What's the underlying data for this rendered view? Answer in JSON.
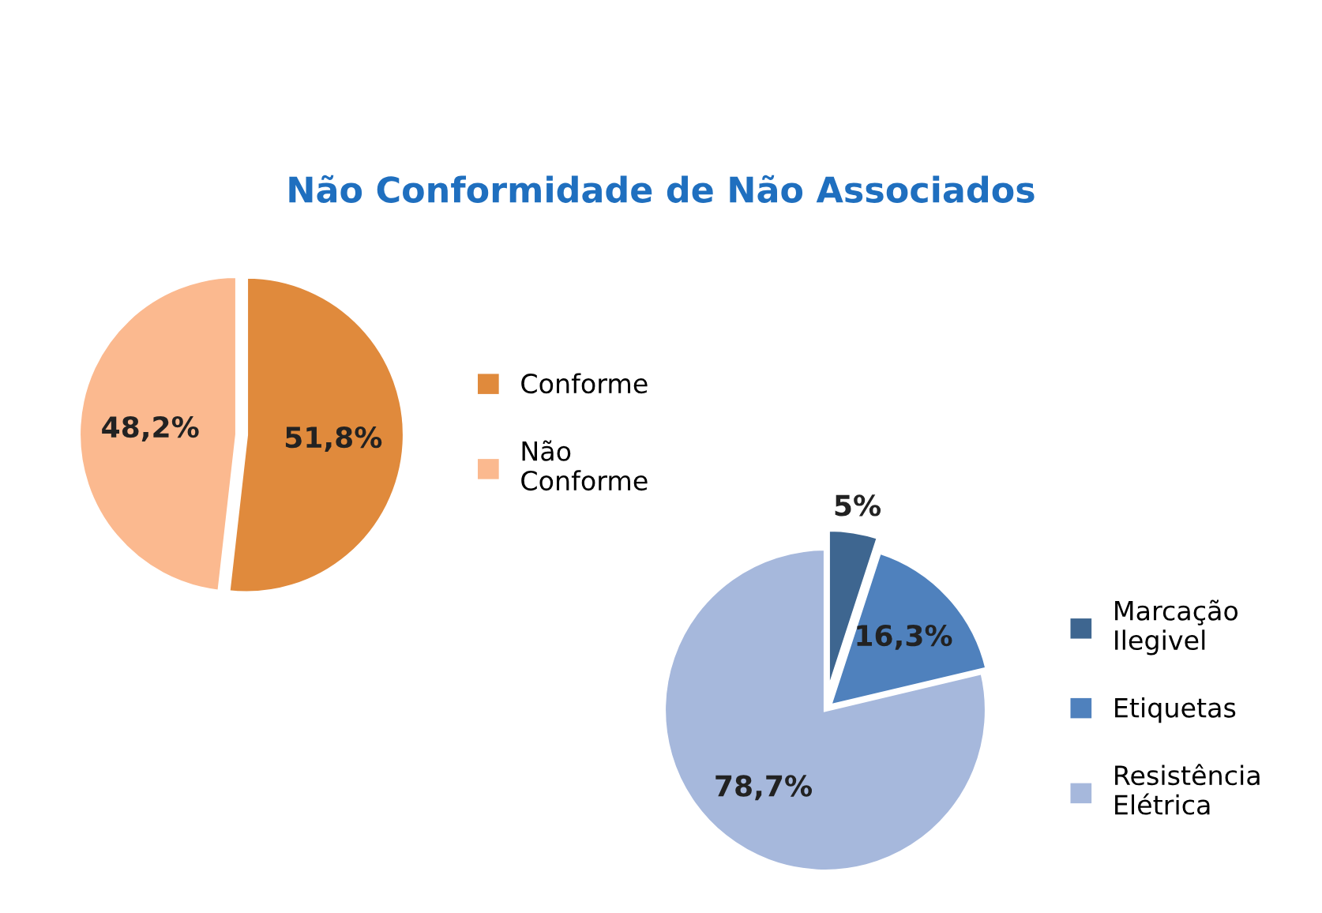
{
  "chart_data": [
    {
      "type": "pie",
      "title": "Não Conformidade de Não Associados",
      "categories": [
        "Conforme",
        "Não\nConforme"
      ],
      "values": [
        51.8,
        48.2
      ],
      "colors": [
        "#e08a3c",
        "#fbb98f"
      ],
      "value_labels": [
        "51,8%",
        "48,2%"
      ],
      "legend": "right"
    },
    {
      "type": "pie",
      "categories": [
        "Marcação\nIlegivel",
        "Etiquetas",
        "Resistência\nElétrica"
      ],
      "values": [
        5,
        16.3,
        78.7
      ],
      "colors": [
        "#3e6690",
        "#4f81bd",
        "#a6b8dc"
      ],
      "value_labels": [
        "5%",
        "16,3%",
        "78,7%"
      ],
      "legend": "right"
    }
  ]
}
